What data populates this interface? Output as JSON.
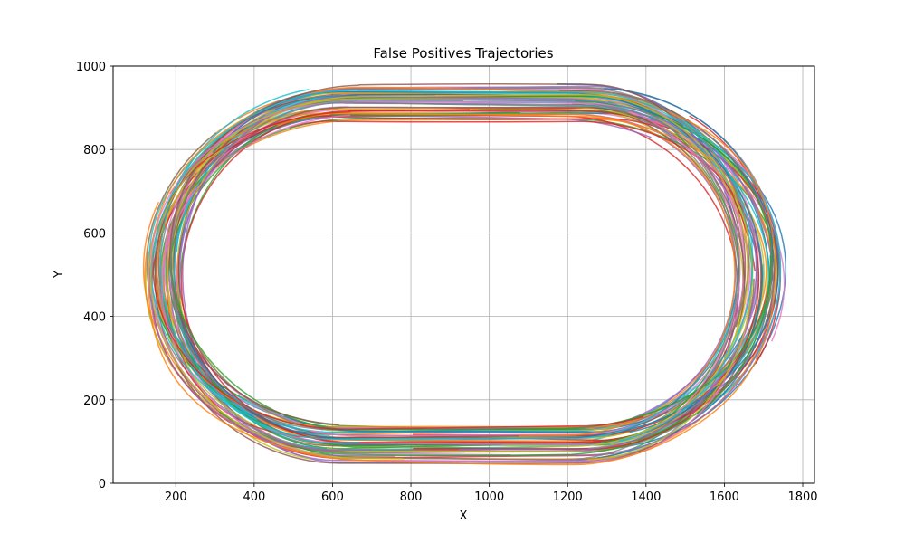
{
  "chart_data": {
    "type": "line",
    "title": "False Positives Trajectories",
    "xlabel": "X",
    "ylabel": "Y",
    "xlim": [
      40,
      1830
    ],
    "ylim": [
      0,
      1000
    ],
    "xticks": [
      200,
      400,
      600,
      800,
      1000,
      1200,
      1400,
      1600,
      1800
    ],
    "yticks": [
      0,
      200,
      400,
      600,
      800,
      1000
    ],
    "grid": true,
    "legend": "none",
    "series_count": 90,
    "palette": [
      "#1f77b4",
      "#ff7f0e",
      "#2ca02c",
      "#d62728",
      "#9467bd",
      "#8c564b",
      "#e377c2",
      "#7f7f7f",
      "#bcbd22",
      "#17becf"
    ],
    "track": {
      "shape": "stadium loop",
      "straight_x": [
        640,
        1230
      ],
      "top_y_range": [
        870,
        955
      ],
      "bottom_y_range": [
        50,
        140
      ],
      "left_x_range": [
        120,
        215
      ],
      "right_x_range": [
        1630,
        1750
      ]
    }
  }
}
